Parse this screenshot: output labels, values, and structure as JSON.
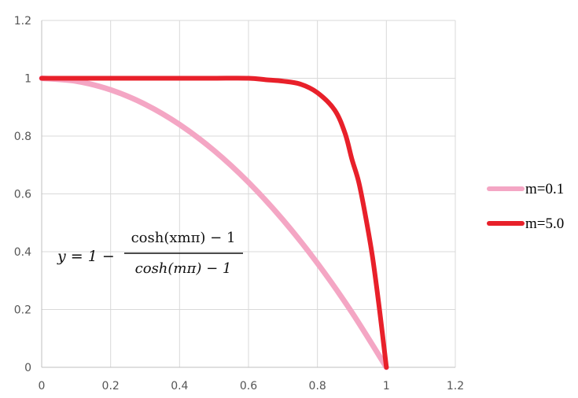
{
  "chart_data": {
    "type": "line",
    "xlim": [
      0,
      1.2
    ],
    "ylim": [
      0,
      1.2
    ],
    "x_ticks": [
      "0",
      "0.2",
      "0.4",
      "0.6",
      "0.8",
      "1",
      "1.2"
    ],
    "y_ticks": [
      "0",
      "0.2",
      "0.4",
      "0.6",
      "0.8",
      "1",
      "1.2"
    ],
    "grid": true,
    "legend_position": "right",
    "annotation": {
      "lhs": "y = 1 −",
      "numerator": "cosh(xmπ) − 1",
      "denominator": "cosh(mπ) − 1"
    },
    "series": [
      {
        "name": "m=0.1",
        "color": "#f4a6c4",
        "x": [
          0,
          0.1,
          0.2,
          0.3,
          0.4,
          0.5,
          0.6,
          0.7,
          0.8,
          0.9,
          1.0
        ],
        "y": [
          1.0,
          0.99,
          0.96,
          0.91,
          0.84,
          0.75,
          0.64,
          0.51,
          0.36,
          0.19,
          0.0
        ]
      },
      {
        "name": "m=5.0",
        "color": "#e8202a",
        "x": [
          0,
          0.1,
          0.2,
          0.3,
          0.4,
          0.5,
          0.6,
          0.65,
          0.7,
          0.75,
          0.8,
          0.85,
          0.88,
          0.9,
          0.92,
          0.94,
          0.96,
          0.98,
          1.0
        ],
        "y": [
          1.0,
          1.0,
          1.0,
          1.0,
          1.0,
          1.0,
          1.0,
          0.995,
          0.99,
          0.98,
          0.95,
          0.89,
          0.81,
          0.72,
          0.64,
          0.52,
          0.38,
          0.2,
          0.0
        ]
      }
    ]
  }
}
